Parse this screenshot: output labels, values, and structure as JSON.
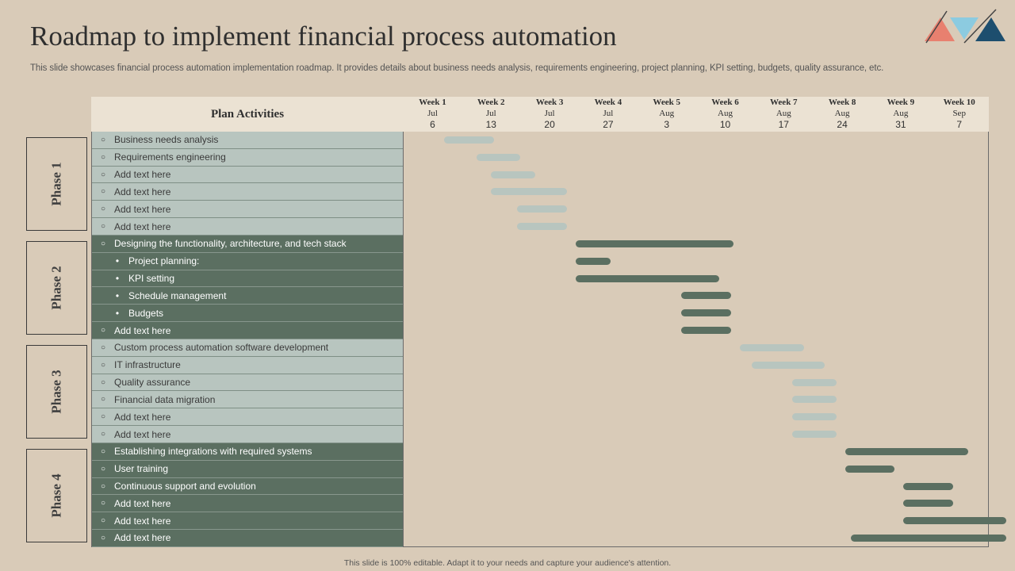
{
  "title": "Roadmap to implement financial process automation",
  "subtitle": "This slide showcases financial process automation implementation roadmap. It provides details about business needs analysis, requirements engineering, project planning, KPI setting, budgets, quality assurance, etc.",
  "plan_label": "Plan Activities",
  "footer": "This slide is 100% editable.  Adapt it to your needs and capture your audience's attention.",
  "colors": {
    "background": "#d9cbb8",
    "light_row": "#b8c5bf",
    "dark_row": "#5b6f61",
    "header": "#ebe2d3",
    "logo_coral": "#e8806f",
    "logo_sky": "#8ccbe0",
    "logo_navy": "#1d4e6e"
  },
  "weeks": [
    {
      "week": "Week 1",
      "month": "Jul",
      "day": "6"
    },
    {
      "week": "Week 2",
      "month": "Jul",
      "day": "13"
    },
    {
      "week": "Week 3",
      "month": "Jul",
      "day": "20"
    },
    {
      "week": "Week 4",
      "month": "Jul",
      "day": "27"
    },
    {
      "week": "Week 5",
      "month": "Aug",
      "day": "3"
    },
    {
      "week": "Week 6",
      "month": "Aug",
      "day": "10"
    },
    {
      "week": "Week 7",
      "month": "Aug",
      "day": "17"
    },
    {
      "week": "Week 8",
      "month": "Aug",
      "day": "24"
    },
    {
      "week": "Week 9",
      "month": "Aug",
      "day": "31"
    },
    {
      "week": "Week 10",
      "month": "Sep",
      "day": "7"
    }
  ],
  "phases": [
    {
      "label": "Phase 1",
      "style": "light",
      "activities": [
        {
          "text": "Business needs analysis",
          "marker": "○",
          "sub": false,
          "start_week": 1.2,
          "end_week": 2.05
        },
        {
          "text": "Requirements engineering",
          "marker": "○",
          "sub": false,
          "start_week": 1.75,
          "end_week": 2.5
        },
        {
          "text": "Add text here",
          "marker": "○",
          "sub": false,
          "start_week": 2.0,
          "end_week": 2.75
        },
        {
          "text": "Add text here",
          "marker": "○",
          "sub": false,
          "start_week": 2.0,
          "end_week": 3.3
        },
        {
          "text": "Add text here",
          "marker": "○",
          "sub": false,
          "start_week": 2.45,
          "end_week": 3.3
        },
        {
          "text": "Add text here",
          "marker": "○",
          "sub": false,
          "start_week": 2.45,
          "end_week": 3.3
        }
      ]
    },
    {
      "label": "Phase 2",
      "style": "dark",
      "activities": [
        {
          "text": "Designing the functionality, architecture, and tech stack",
          "marker": "○",
          "sub": false,
          "start_week": 3.45,
          "end_week": 6.15
        },
        {
          "text": "Project planning:",
          "marker": "•",
          "sub": true,
          "start_week": 3.45,
          "end_week": 4.05
        },
        {
          "text": "KPI setting",
          "marker": "•",
          "sub": true,
          "start_week": 3.45,
          "end_week": 5.9
        },
        {
          "text": "Schedule management",
          "marker": "•",
          "sub": true,
          "start_week": 5.25,
          "end_week": 6.1
        },
        {
          "text": "Budgets",
          "marker": "•",
          "sub": true,
          "start_week": 5.25,
          "end_week": 6.1
        },
        {
          "text": "Add text here",
          "marker": "○",
          "sub": false,
          "start_week": 5.25,
          "end_week": 6.1
        }
      ]
    },
    {
      "label": "Phase 3",
      "style": "light",
      "activities": [
        {
          "text": "Custom process automation software development",
          "marker": "○",
          "sub": false,
          "start_week": 6.25,
          "end_week": 7.35
        },
        {
          "text": "IT infrastructure",
          "marker": "○",
          "sub": false,
          "start_week": 6.45,
          "end_week": 7.7
        },
        {
          "text": "Quality assurance",
          "marker": "○",
          "sub": false,
          "start_week": 7.15,
          "end_week": 7.9
        },
        {
          "text": "Financial data migration",
          "marker": "○",
          "sub": false,
          "start_week": 7.15,
          "end_week": 7.9
        },
        {
          "text": "Add text here",
          "marker": "○",
          "sub": false,
          "start_week": 7.15,
          "end_week": 7.9
        },
        {
          "text": "Add text here",
          "marker": "○",
          "sub": false,
          "start_week": 7.15,
          "end_week": 7.9
        }
      ]
    },
    {
      "label": "Phase 4",
      "style": "dark",
      "activities": [
        {
          "text": "Establishing integrations with required systems",
          "marker": "○",
          "sub": false,
          "start_week": 8.05,
          "end_week": 10.15
        },
        {
          "text": "User training",
          "marker": "○",
          "sub": false,
          "start_week": 8.05,
          "end_week": 8.9
        },
        {
          "text": "Continuous support and evolution",
          "marker": "○",
          "sub": false,
          "start_week": 9.05,
          "end_week": 9.9
        },
        {
          "text": "Add text here",
          "marker": "○",
          "sub": false,
          "start_week": 9.05,
          "end_week": 9.9
        },
        {
          "text": "Add text here",
          "marker": "○",
          "sub": false,
          "start_week": 9.05,
          "end_week": 10.8
        },
        {
          "text": "Add text here",
          "marker": "○",
          "sub": false,
          "start_week": 8.15,
          "end_week": 10.8
        }
      ]
    }
  ]
}
